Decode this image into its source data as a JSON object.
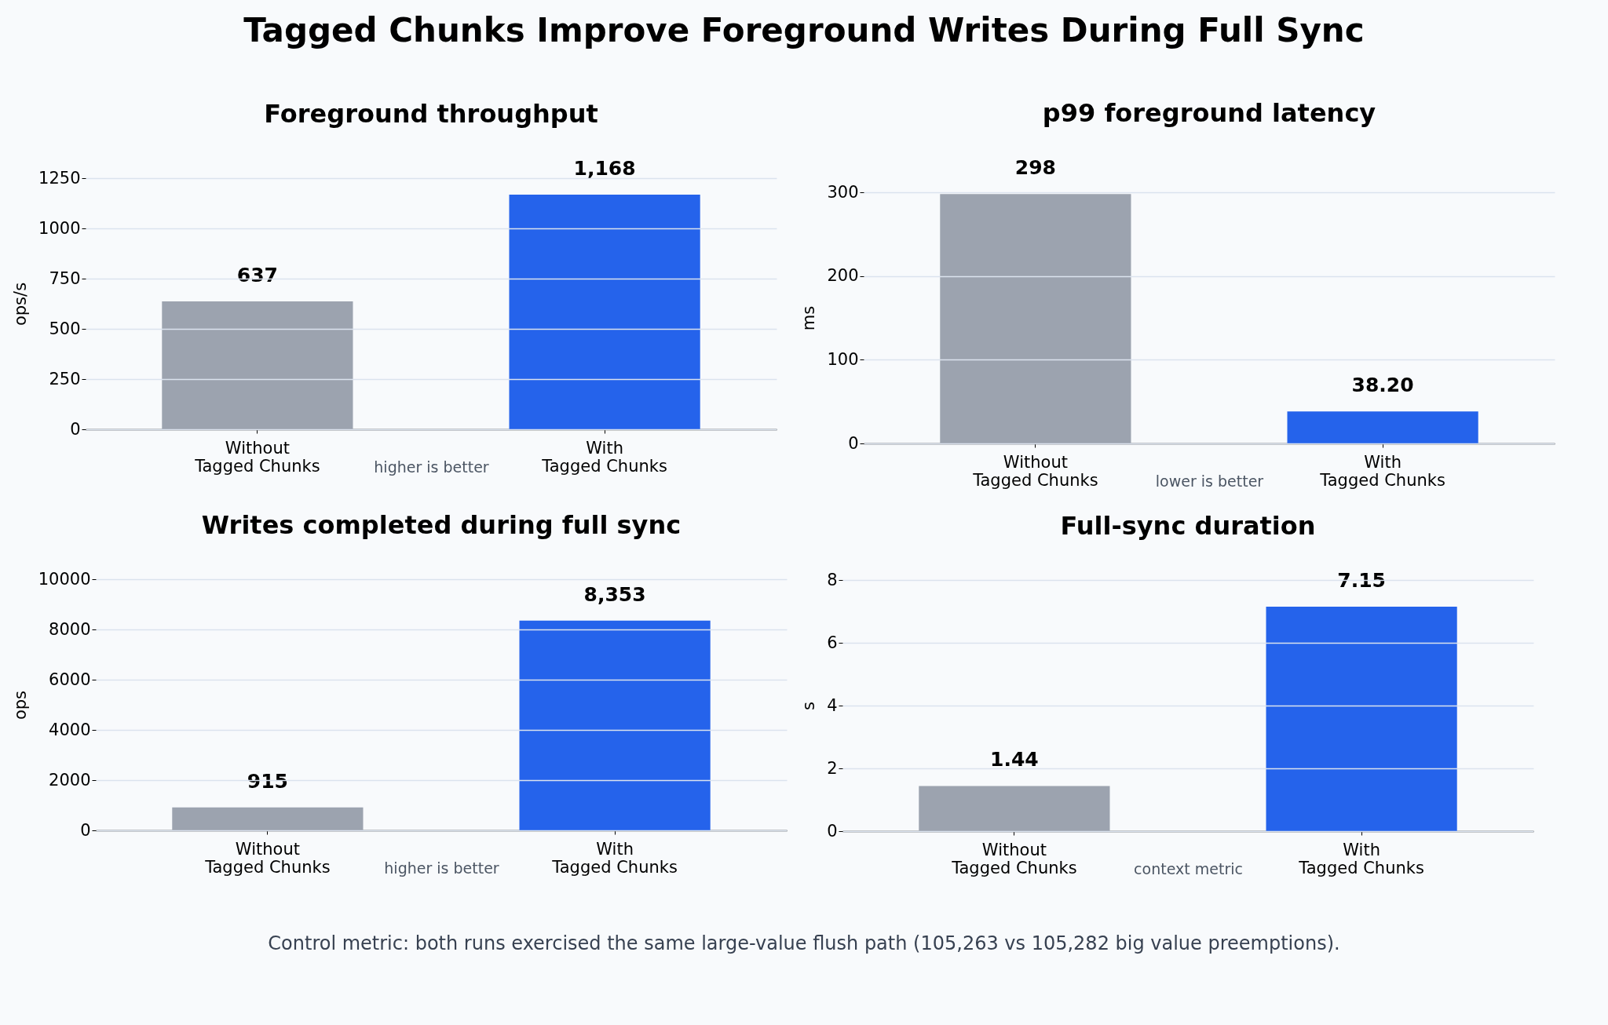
{
  "chart_data": [
    {
      "type": "bar",
      "title": "Foreground throughput",
      "ylabel": "ops/s",
      "categories": [
        "Without\nTagged Chunks",
        "With\nTagged Chunks"
      ],
      "values": [
        637,
        1168
      ],
      "colors": [
        "#9ca3af",
        "#2563eb"
      ],
      "value_labels": [
        "637",
        "1,168"
      ],
      "ylim": [
        0,
        1250
      ],
      "yticks": [
        0,
        250,
        500,
        750,
        1000,
        1250
      ],
      "grid": "y",
      "annotations": [
        "Tagged Chunks Improve Foreground Writes During Full Sync",
        "higher is better"
      ]
    },
    {
      "type": "bar",
      "title": "p99 foreground latency",
      "ylabel": "ms",
      "categories": [
        "Without\nTagged Chunks",
        "With\nTagged Chunks"
      ],
      "values": [
        298,
        38.2
      ],
      "colors": [
        "#9ca3af",
        "#2563eb"
      ],
      "value_labels": [
        "298",
        "38.20"
      ],
      "ylim": [
        0,
        300
      ],
      "yticks": [
        0,
        100,
        200,
        300
      ],
      "grid": "y",
      "annotations": [
        "lower is better"
      ]
    },
    {
      "type": "bar",
      "title": "Writes completed during full sync",
      "ylabel": "ops",
      "categories": [
        "Without\nTagged Chunks",
        "With\nTagged Chunks"
      ],
      "values": [
        915,
        8353
      ],
      "colors": [
        "#9ca3af",
        "#2563eb"
      ],
      "value_labels": [
        "915",
        "8,353"
      ],
      "ylim": [
        0,
        10000
      ],
      "yticks": [
        0,
        2000,
        4000,
        6000,
        8000,
        10000
      ],
      "grid": "y",
      "annotations": [
        "higher is better"
      ]
    },
    {
      "type": "bar",
      "title": "Full-sync duration",
      "ylabel": "s",
      "categories": [
        "Without\nTagged Chunks",
        "With\nTagged Chunks"
      ],
      "values": [
        1.44,
        7.15
      ],
      "colors": [
        "#9ca3af",
        "#2563eb"
      ],
      "value_labels": [
        "1.44",
        "7.15"
      ],
      "ylim": [
        0,
        8
      ],
      "yticks": [
        0,
        2,
        4,
        6,
        8
      ],
      "grid": "y",
      "annotations": [
        "context metric",
        "Control metric: both runs exercised the same large-value flush path (105,263 vs 105,282 big value preemptions)."
      ]
    }
  ]
}
